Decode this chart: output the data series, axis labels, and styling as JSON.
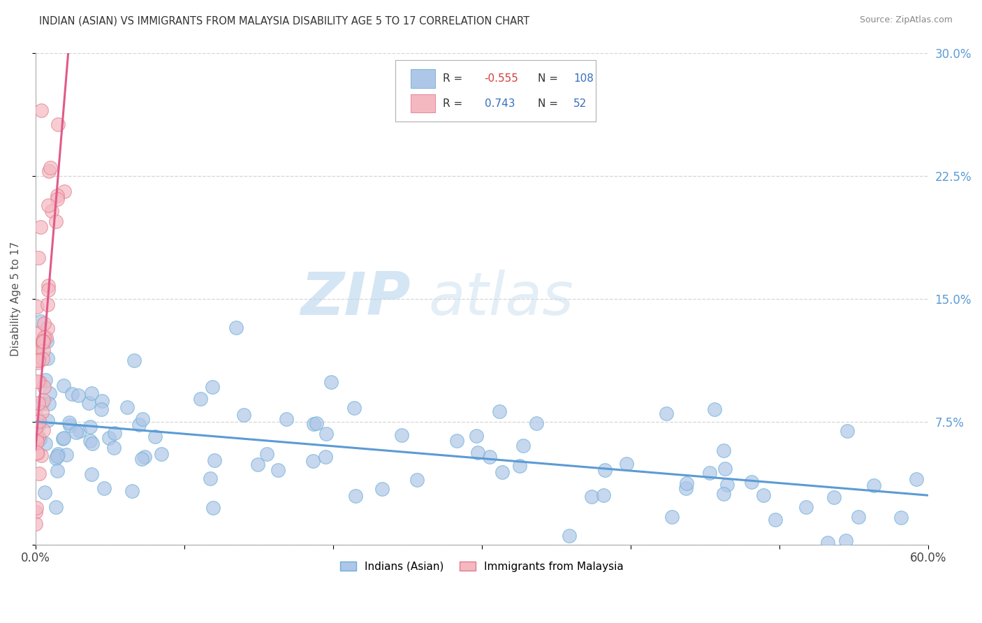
{
  "title": "INDIAN (ASIAN) VS IMMIGRANTS FROM MALAYSIA DISABILITY AGE 5 TO 17 CORRELATION CHART",
  "source": "Source: ZipAtlas.com",
  "ylabel": "Disability Age 5 to 17",
  "xlim": [
    0.0,
    0.6
  ],
  "ylim": [
    0.0,
    0.3
  ],
  "xticks": [
    0.0,
    0.1,
    0.2,
    0.3,
    0.4,
    0.5,
    0.6
  ],
  "xticklabels": [
    "0.0%",
    "",
    "",
    "",
    "",
    "",
    "60.0%"
  ],
  "yticks": [
    0.0,
    0.075,
    0.15,
    0.225,
    0.3
  ],
  "yticklabels": [
    "",
    "7.5%",
    "15.0%",
    "22.5%",
    "30.0%"
  ],
  "series1_color": "#aec6e8",
  "series1_edge": "#6aaed6",
  "series2_color": "#f4b8c1",
  "series2_edge": "#e07b8a",
  "line1_color": "#5b9bd5",
  "line2_color": "#e05a8a",
  "legend_r1": "-0.555",
  "legend_n1": "108",
  "legend_r2": "0.743",
  "legend_n2": "52",
  "watermark_zip": "ZIP",
  "watermark_atlas": "atlas",
  "background_color": "#ffffff",
  "grid_color": "#cccccc",
  "seed": 42,
  "line1_x0": 0.0,
  "line1_y0": 0.075,
  "line1_x1": 0.6,
  "line1_y1": 0.03,
  "line2_x0": 0.0,
  "line2_y0": 0.058,
  "line2_x1": 0.022,
  "line2_y1": 0.3
}
